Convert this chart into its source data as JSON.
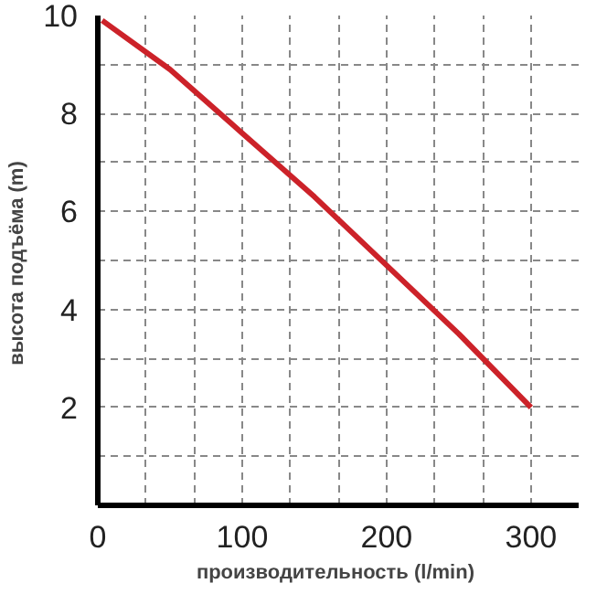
{
  "chart_data": {
    "type": "line",
    "xlabel": "производительность  (l/min)",
    "ylabel": "высота подъёма  (m)",
    "x": [
      3,
      50,
      100,
      150,
      200,
      250,
      300
    ],
    "series": [
      {
        "color": "#cc2229",
        "values": [
          9.9,
          8.9,
          7.6,
          6.3,
          4.9,
          3.5,
          2.0
        ]
      }
    ],
    "xlim": [
      0,
      333
    ],
    "ylim": [
      0,
      10
    ],
    "xticks": [
      0,
      {
        "value": 33.3,
        "label": null
      },
      {
        "value": 66.7,
        "label": null
      },
      100,
      {
        "value": 133.3,
        "label": null
      },
      {
        "value": 166.7,
        "label": null
      },
      200,
      {
        "value": 233.3,
        "label": null
      },
      {
        "value": 266.7,
        "label": null
      },
      300
    ],
    "yticks": [
      {
        "value": 1,
        "label": null
      },
      2,
      {
        "value": 3,
        "label": null
      },
      4,
      {
        "value": 5,
        "label": null
      },
      6,
      {
        "value": 7,
        "label": null
      },
      8,
      {
        "value": 9,
        "label": null
      },
      10
    ],
    "grid": true,
    "marker": "none",
    "line_style": "solid"
  }
}
